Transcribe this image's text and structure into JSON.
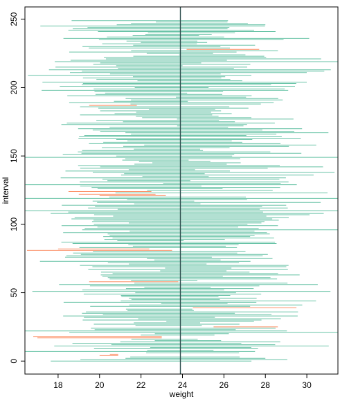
{
  "chart_data": {
    "type": "interval",
    "title": "",
    "xlabel": "weight",
    "ylabel": "interval",
    "xlim": [
      16.4,
      31.5
    ],
    "ylim": [
      -9.5,
      259
    ],
    "x_ticks": [
      18,
      20,
      22,
      24,
      26,
      28,
      30
    ],
    "y_ticks": [
      0,
      50,
      100,
      150,
      200,
      250
    ],
    "reference_line_x": 23.9,
    "colors": {
      "covers_reference": "#66c2a5",
      "misses_reference": "#fc8d62",
      "reference_line": "#2f4f4f",
      "frame": "#000000"
    },
    "n_intervals": 250,
    "generation_note": "",
    "misses": [
      {
        "index": 4,
        "lower": 20.0,
        "upper": 20.9
      },
      {
        "index": 5,
        "lower": 20.5,
        "upper": 20.9
      },
      {
        "index": 17,
        "lower": 17.0,
        "upper": 23.0
      },
      {
        "index": 18,
        "lower": 16.8,
        "upper": 23.0
      },
      {
        "index": 25,
        "lower": 25.5,
        "upper": 28.6
      },
      {
        "index": 39,
        "lower": 24.5,
        "upper": 29.5
      },
      {
        "index": 58,
        "lower": 19.5,
        "upper": 23.8
      },
      {
        "index": 81,
        "lower": 16.5,
        "upper": 23.5
      },
      {
        "index": 82,
        "lower": 18.0,
        "upper": 22.4
      },
      {
        "index": 121,
        "lower": 20.0,
        "upper": 23.2
      },
      {
        "index": 122,
        "lower": 19.0,
        "upper": 22.7
      },
      {
        "index": 124,
        "lower": 18.5,
        "upper": 22.5
      },
      {
        "index": 187,
        "lower": 19.5,
        "upper": 21.8
      },
      {
        "index": 228,
        "lower": 24.2,
        "upper": 27.7
      }
    ]
  }
}
